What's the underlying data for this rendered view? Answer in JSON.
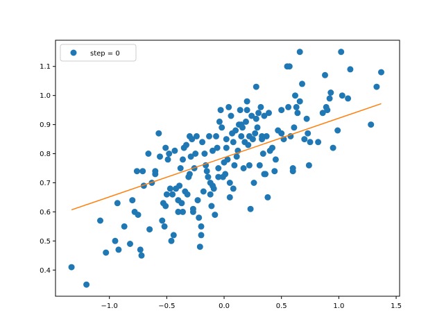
{
  "chart_data": {
    "type": "scatter",
    "xlim": [
      -1.47,
      1.53
    ],
    "ylim": [
      0.31,
      1.19
    ],
    "xticks": [
      -1.0,
      -0.5,
      0.0,
      0.5,
      1.0,
      1.5
    ],
    "xtick_labels": [
      "−1.0",
      "−0.5",
      "0.0",
      "0.5",
      "1.0",
      "1.5"
    ],
    "yticks": [
      0.4,
      0.5,
      0.6,
      0.7,
      0.8,
      0.9,
      1.0,
      1.1
    ],
    "ytick_labels": [
      "0.4",
      "0.5",
      "0.6",
      "0.7",
      "0.8",
      "0.9",
      "1.0",
      "1.1"
    ],
    "grid": false,
    "legend_position": "top-left",
    "colors": {
      "points": "#1f77b4",
      "line": "#ff7f0e"
    },
    "series": [
      {
        "name": "step = 0",
        "kind": "scatter",
        "x": [
          -1.33,
          -1.2,
          -1.08,
          -1.03,
          -0.95,
          -0.93,
          -0.92,
          -0.87,
          -0.82,
          -0.8,
          -0.78,
          -0.76,
          -0.75,
          -0.73,
          -0.72,
          -0.71,
          -0.7,
          -0.66,
          -0.65,
          -0.63,
          -0.6,
          -0.57,
          -0.56,
          -0.54,
          -0.52,
          -0.51,
          -0.51,
          -0.5,
          -0.49,
          -0.48,
          -0.47,
          -0.46,
          -0.45,
          -0.44,
          -0.43,
          -0.42,
          -0.4,
          -0.39,
          -0.38,
          -0.37,
          -0.36,
          -0.36,
          -0.35,
          -0.34,
          -0.33,
          -0.32,
          -0.31,
          -0.3,
          -0.29,
          -0.28,
          -0.27,
          -0.26,
          -0.25,
          -0.24,
          -0.23,
          -0.22,
          -0.21,
          -0.2,
          -0.19,
          -0.18,
          -0.17,
          -0.16,
          -0.15,
          -0.14,
          -0.13,
          -0.12,
          -0.11,
          -0.1,
          -0.09,
          -0.08,
          -0.07,
          -0.06,
          -0.05,
          -0.04,
          -0.03,
          -0.02,
          -0.01,
          0.0,
          0.01,
          0.02,
          0.03,
          0.04,
          0.05,
          0.06,
          0.07,
          0.08,
          0.09,
          0.1,
          0.11,
          0.12,
          0.13,
          0.14,
          0.15,
          0.16,
          0.17,
          0.18,
          0.19,
          0.2,
          0.21,
          0.22,
          0.23,
          0.24,
          0.25,
          0.26,
          0.27,
          0.28,
          0.29,
          0.3,
          0.31,
          0.32,
          0.33,
          0.34,
          0.35,
          0.36,
          0.37,
          0.38,
          0.39,
          0.4,
          0.42,
          0.44,
          0.47,
          0.5,
          0.52,
          0.55,
          0.56,
          0.57,
          0.58,
          0.6,
          0.61,
          0.62,
          0.63,
          0.64,
          0.66,
          0.68,
          0.7,
          0.72,
          0.73,
          0.74,
          0.82,
          0.86,
          0.88,
          0.89,
          0.9,
          0.92,
          0.93,
          0.95,
          0.99,
          1.02,
          1.08,
          1.1,
          1.28,
          1.33,
          1.37,
          -0.53,
          -0.27,
          -0.05,
          0.08,
          0.28,
          0.45,
          -0.6,
          -0.2,
          0.15,
          0.35,
          0.6,
          -0.4,
          -0.1,
          0.2,
          0.5,
          0.75,
          -0.3,
          0.05,
          0.33,
          0.66,
          1.03,
          0.02,
          -0.12,
          0.22
        ],
        "y": [
          0.41,
          0.35,
          0.57,
          0.46,
          0.5,
          0.63,
          0.47,
          0.55,
          0.49,
          0.64,
          0.6,
          0.74,
          0.59,
          0.47,
          0.45,
          0.74,
          0.69,
          0.8,
          0.54,
          0.7,
          0.73,
          0.87,
          0.79,
          0.57,
          0.55,
          0.62,
          0.82,
          0.66,
          0.78,
          0.8,
          0.68,
          0.5,
          0.66,
          0.52,
          0.81,
          0.68,
          0.6,
          0.69,
          0.75,
          0.63,
          0.78,
          0.6,
          0.82,
          0.67,
          0.83,
          0.66,
          0.72,
          0.73,
          0.79,
          0.85,
          0.6,
          0.75,
          0.8,
          0.86,
          0.64,
          0.58,
          0.48,
          0.55,
          0.84,
          0.67,
          0.8,
          0.76,
          0.74,
          0.72,
          0.86,
          0.7,
          0.62,
          0.81,
          0.68,
          0.59,
          0.86,
          0.82,
          0.75,
          0.91,
          0.95,
          0.89,
          0.72,
          0.77,
          0.73,
          0.85,
          0.78,
          0.96,
          0.7,
          0.93,
          0.87,
          0.84,
          0.76,
          0.88,
          0.79,
          0.81,
          0.9,
          0.95,
          0.86,
          0.89,
          0.75,
          0.84,
          0.91,
          0.98,
          0.83,
          0.86,
          0.61,
          0.93,
          0.85,
          0.7,
          0.87,
          1.03,
          0.89,
          0.94,
          0.76,
          0.96,
          0.86,
          0.8,
          0.93,
          0.73,
          0.86,
          0.65,
          0.94,
          0.81,
          0.82,
          0.74,
          0.88,
          0.95,
          0.85,
          1.1,
          0.96,
          1.1,
          0.86,
          0.75,
          0.89,
          1.0,
          0.96,
          0.94,
          0.98,
          1.04,
          0.85,
          0.92,
          0.87,
          0.76,
          0.84,
          0.94,
          1.07,
          0.96,
          0.95,
          0.99,
          1.01,
          0.82,
          0.88,
          1.15,
          0.99,
          1.09,
          0.9,
          1.03,
          1.08,
          0.63,
          0.61,
          0.72,
          0.68,
          0.92,
          0.78,
          0.74,
          0.52,
          0.9,
          0.73,
          0.74,
          0.64,
          0.69,
          0.95,
          0.87,
          0.84,
          0.86,
          0.65,
          0.85,
          1.15,
          1.0,
          0.82,
          0.66,
          0.76
        ],
        "color": "#1f77b4"
      },
      {
        "kind": "line",
        "x": [
          -1.33,
          1.37
        ],
        "y": [
          0.607,
          0.972
        ],
        "color": "#ff7f0e"
      }
    ]
  }
}
